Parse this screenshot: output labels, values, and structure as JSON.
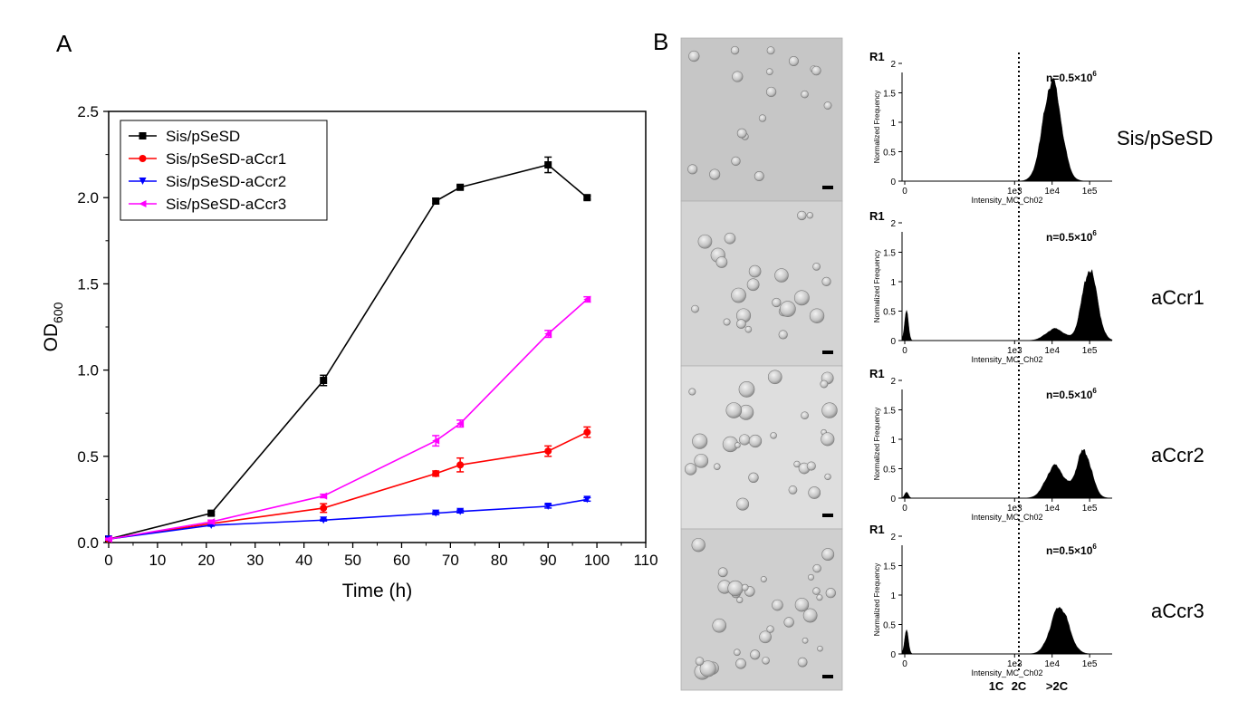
{
  "panel_a_label": "A",
  "panel_b_label": "B",
  "chart_data": [
    {
      "type": "line",
      "xlabel": "Time (h)",
      "ylabel_main": "OD",
      "ylabel_sub": "600",
      "xlim": [
        0,
        110
      ],
      "ylim": [
        0,
        2.5
      ],
      "x_ticks": [
        "0",
        "10",
        "20",
        "30",
        "40",
        "50",
        "60",
        "70",
        "80",
        "90",
        "100",
        "110"
      ],
      "y_ticks": [
        "0.0",
        "0.5",
        "1.0",
        "1.5",
        "2.0",
        "2.5"
      ],
      "legend_position": "top-left",
      "grid": false,
      "series": [
        {
          "name": "Sis/pSeSD",
          "color": "#000000",
          "marker": "square",
          "x": [
            0,
            21,
            44,
            67,
            72,
            90,
            98
          ],
          "y": [
            0.02,
            0.17,
            0.94,
            1.98,
            2.06,
            2.19,
            2.0
          ],
          "err": [
            0.005,
            0.01,
            0.03,
            0.015,
            0.01,
            0.045,
            0.01
          ]
        },
        {
          "name": "Sis/pSeSD-aCcr1",
          "color": "#ff0000",
          "marker": "circle",
          "x": [
            0,
            21,
            44,
            67,
            72,
            90,
            98
          ],
          "y": [
            0.02,
            0.11,
            0.2,
            0.4,
            0.45,
            0.53,
            0.64
          ],
          "err": [
            0.005,
            0.01,
            0.025,
            0.015,
            0.04,
            0.03,
            0.03
          ]
        },
        {
          "name": "Sis/pSeSD-aCcr2",
          "color": "#0000ff",
          "marker": "triangle-down",
          "x": [
            0,
            21,
            44,
            67,
            72,
            90,
            98
          ],
          "y": [
            0.02,
            0.1,
            0.13,
            0.17,
            0.18,
            0.21,
            0.25
          ],
          "err": [
            0.005,
            0.005,
            0.005,
            0.008,
            0.008,
            0.01,
            0.01
          ]
        },
        {
          "name": "Sis/pSeSD-aCcr3",
          "color": "#ff00ff",
          "marker": "triangle-left",
          "x": [
            0,
            21,
            44,
            67,
            72,
            90,
            98
          ],
          "y": [
            0.02,
            0.12,
            0.27,
            0.59,
            0.69,
            1.21,
            1.41
          ],
          "err": [
            0.005,
            0.01,
            0.01,
            0.03,
            0.02,
            0.02,
            0.015
          ]
        }
      ]
    },
    {
      "type": "area",
      "xlabel": "Intensity_MC_Ch02",
      "ylabel": "Normalized Frequency",
      "gate_label": "R1",
      "x_ticks": [
        "0",
        "1e3",
        "1e4",
        "1e5"
      ],
      "y_ticks": [
        "0",
        "0.5",
        "1",
        "1.5",
        "2"
      ],
      "ylim": [
        0,
        2
      ],
      "threshold_x": "2C",
      "bin_labels": [
        "1C",
        "2C",
        ">2C"
      ],
      "histograms": [
        {
          "sample": "Sis/pSeSD",
          "annotation": "n=0.5×10",
          "annotation_exp": "6",
          "peaks": [
            {
              "pos": 10000.0,
              "height": 1.7
            }
          ]
        },
        {
          "sample": "aCcr1",
          "annotation": "n=0.5×10",
          "annotation_exp": "6",
          "peaks": [
            {
              "pos": 1,
              "height": 0.5
            },
            {
              "pos": 12000.0,
              "height": 0.2
            },
            {
              "pos": 100000.0,
              "height": 1.2
            }
          ]
        },
        {
          "sample": "aCcr2",
          "annotation": "n=0.5×10",
          "annotation_exp": "6",
          "peaks": [
            {
              "pos": 1,
              "height": 0.1
            },
            {
              "pos": 12000.0,
              "height": 0.55
            },
            {
              "pos": 70000.0,
              "height": 0.8
            }
          ]
        },
        {
          "sample": "aCcr3",
          "annotation": "n=0.5×10",
          "annotation_exp": "6",
          "peaks": [
            {
              "pos": 1,
              "height": 0.4
            },
            {
              "pos": 16000.0,
              "height": 0.8
            }
          ]
        }
      ]
    }
  ]
}
